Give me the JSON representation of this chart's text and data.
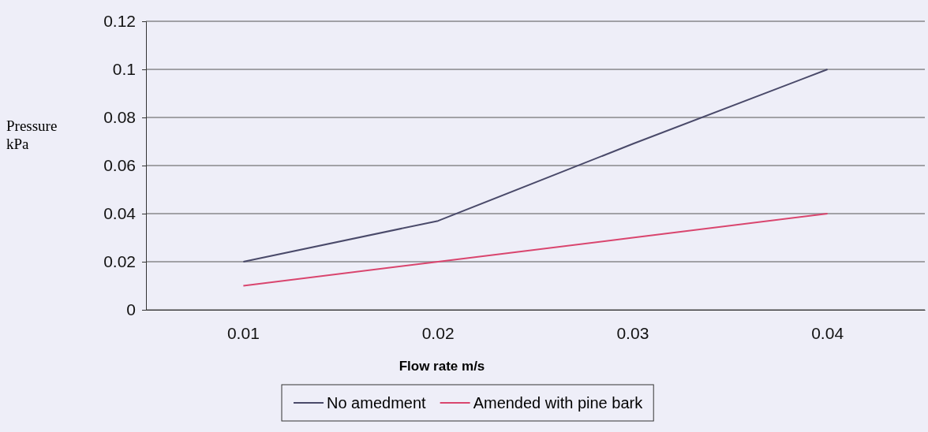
{
  "chart_data": {
    "type": "line",
    "xlabel": "Flow rate m/s",
    "ylabel": "Pressure kPa",
    "categories": [
      "0.01",
      "0.02",
      "0.03",
      "0.04"
    ],
    "series": [
      {
        "name": "No amedment",
        "color": "#4a4a6a",
        "values": [
          0.02,
          0.037,
          0.069,
          0.1
        ]
      },
      {
        "name": "Amended with pine bark",
        "color": "#d9456e",
        "values": [
          0.01,
          0.02,
          0.03,
          0.04
        ]
      }
    ],
    "ylim": [
      0,
      0.12
    ],
    "yticks": [
      0,
      0.02,
      0.04,
      0.06,
      0.08,
      0.1,
      0.12
    ],
    "grid": "y",
    "legend": "bottom",
    "marker": "none",
    "line_style": "solid"
  }
}
